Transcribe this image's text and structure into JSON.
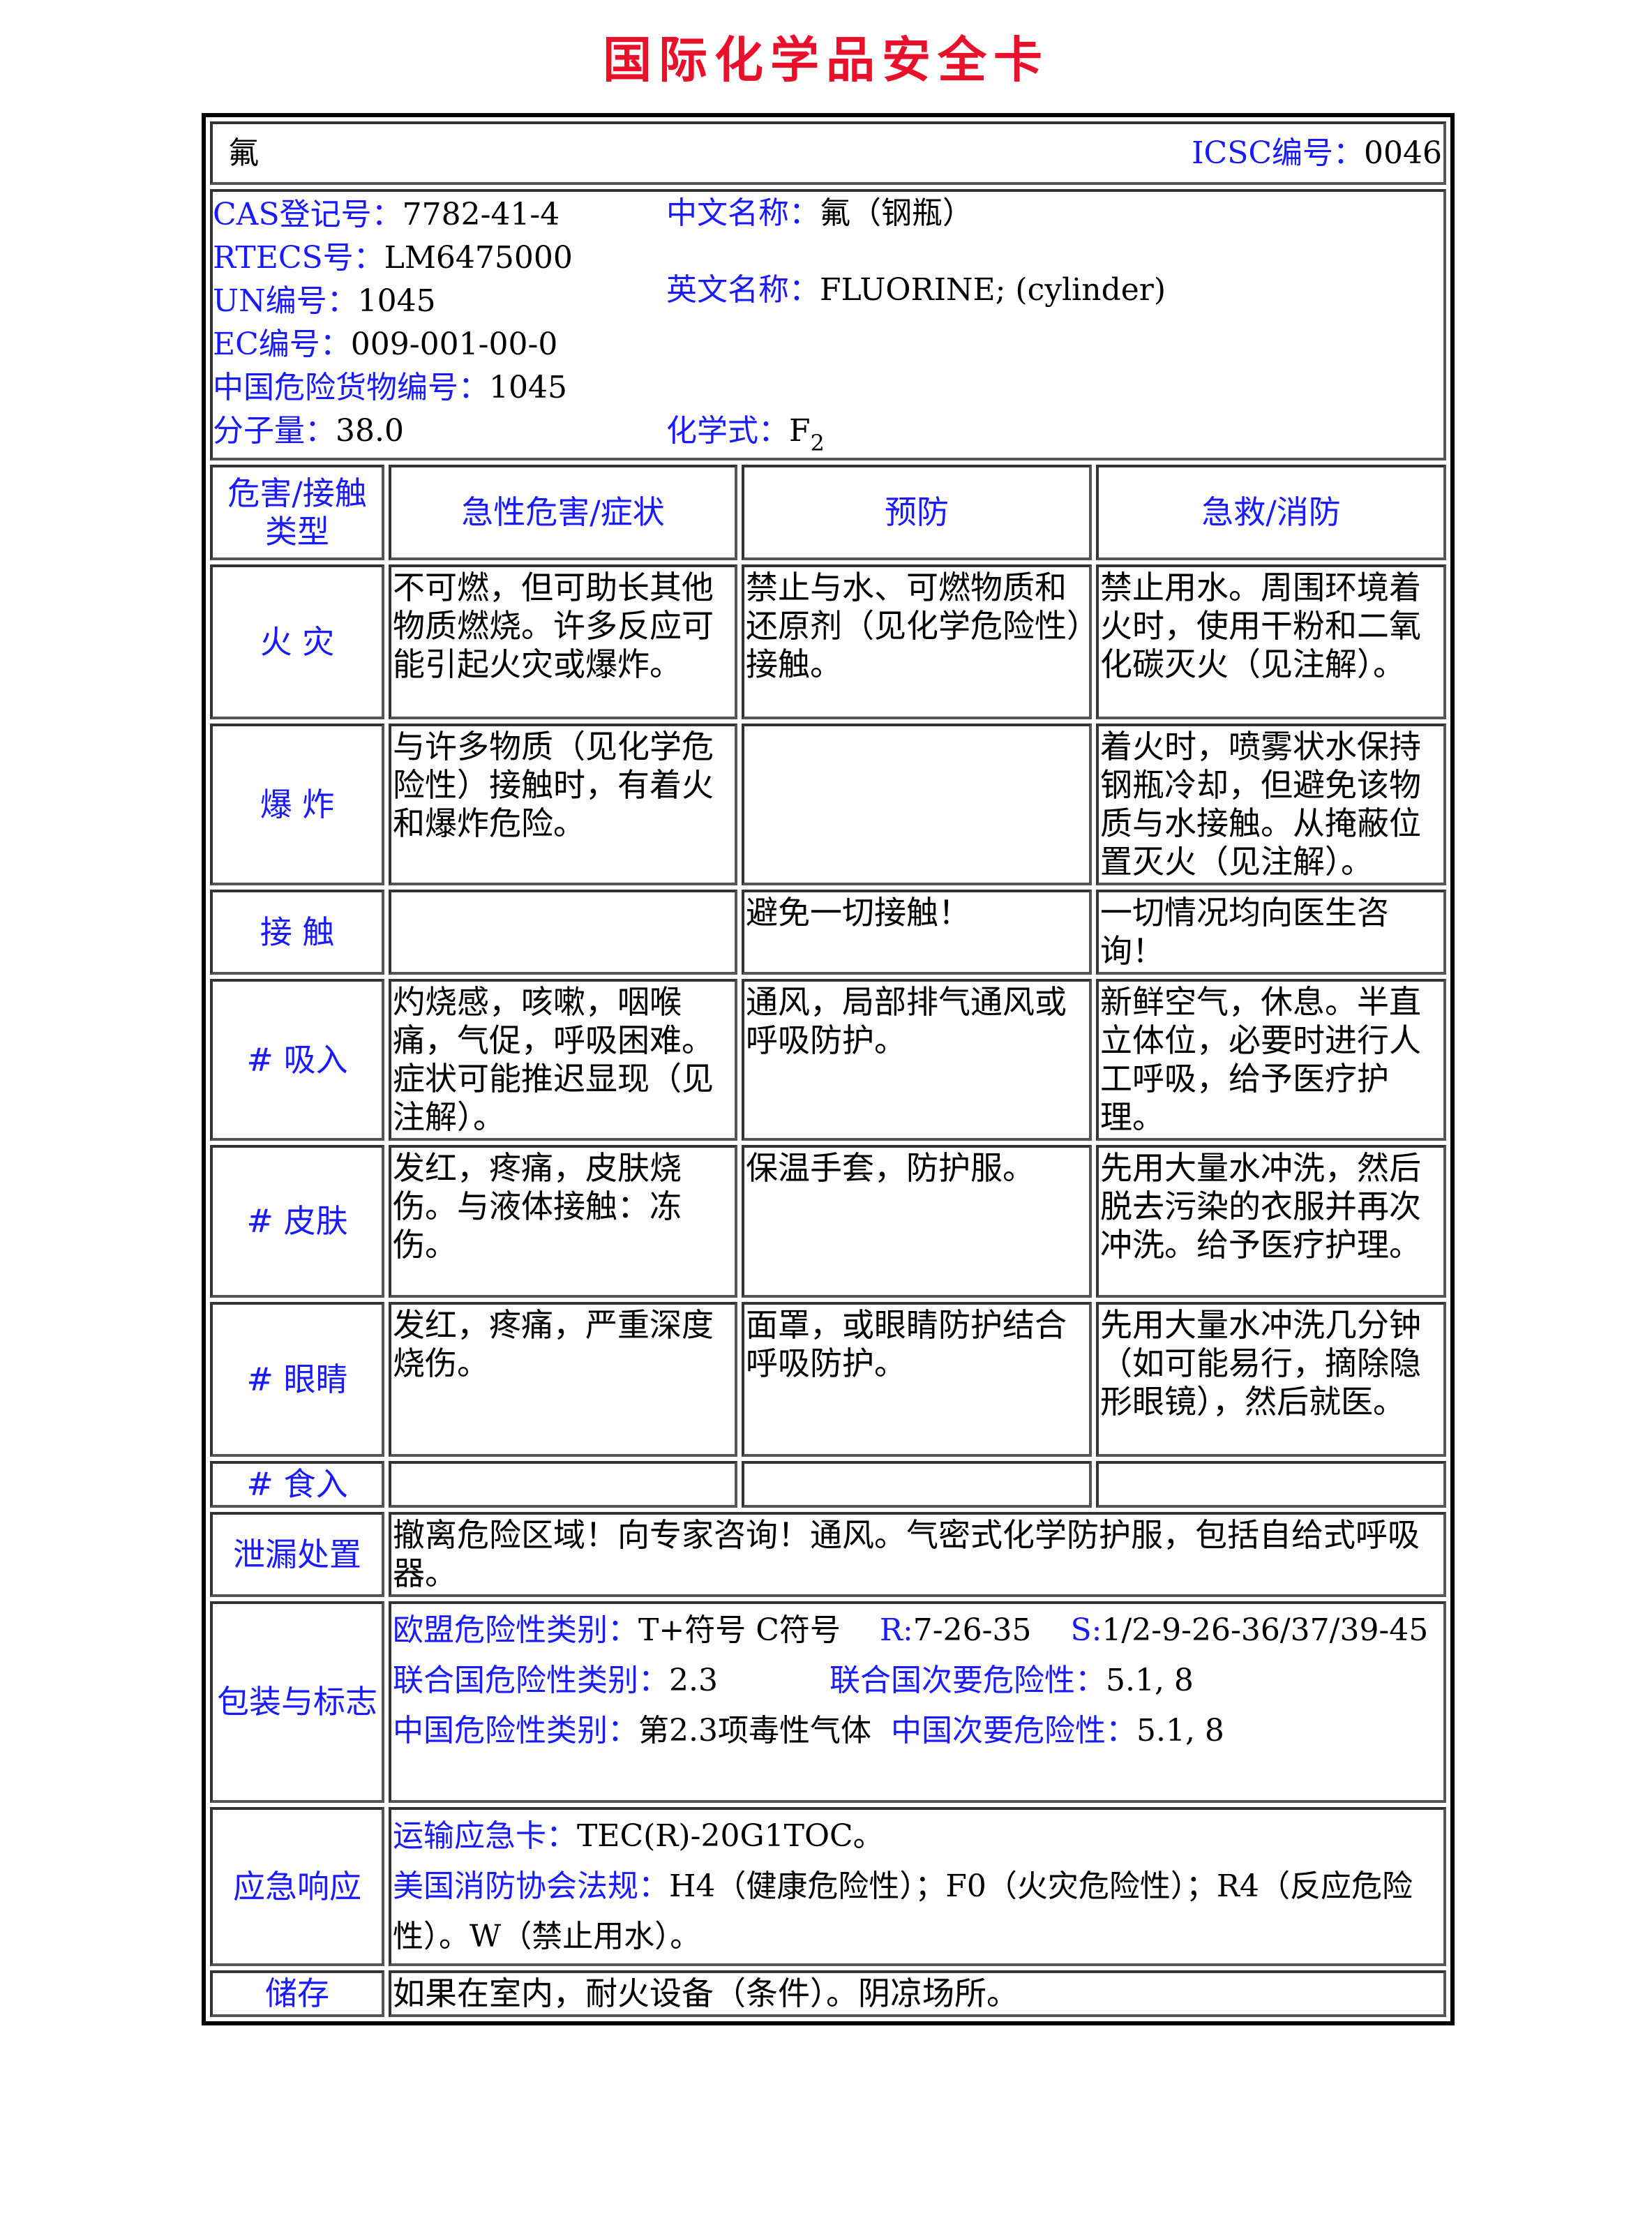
{
  "title": "国际化学品安全卡",
  "header": {
    "name": "氟",
    "icsc_label": "ICSC编号：",
    "icsc_value": "0046"
  },
  "info": {
    "cas_label": "CAS登记号：",
    "cas": "7782-41-4",
    "rtecs_label": "RTECS号：",
    "rtecs": "LM6475000",
    "un_label": "UN编号：",
    "un": "1045",
    "ec_label": "EC编号：",
    "ec": "009-001-00-0",
    "cn_dg_label": "中国危险货物编号：",
    "cn_dg": "1045",
    "mw_label": "分子量：",
    "mw": "38.0",
    "cn_name_label": "中文名称：",
    "cn_name": "氟（钢瓶）",
    "en_name_label": "英文名称：",
    "en_name": "FLUORINE; (cylinder)",
    "formula_label": "化学式：",
    "formula": "F",
    "formula_sub": "2"
  },
  "columns": [
    "危害/接触类型",
    "急性危害/症状",
    "预防",
    "急救/消防"
  ],
  "rows": [
    {
      "type": "火 灾",
      "hazard": "不可燃，但可助长其他物质燃烧。许多反应可能引起火灾或爆炸。",
      "prevention": "禁止与水、可燃物质和还原剂（见化学危险性）接触。",
      "aid": "禁止用水。周围环境着火时，使用干粉和二氧化碳灭火（见注解）。"
    },
    {
      "type": "爆 炸",
      "hazard": "与许多物质（见化学危险性）接触时，有着火和爆炸危险。",
      "prevention": "",
      "aid": "着火时，喷雾状水保持钢瓶冷却，但避免该物质与水接触。从掩蔽位置灭火（见注解）。"
    },
    {
      "type": "接 触",
      "hazard": "",
      "prevention": "避免一切接触！",
      "aid": "一切情况均向医生咨询！"
    },
    {
      "type": "# 吸入",
      "hazard": "灼烧感，咳嗽，咽喉痛，气促，呼吸困难。症状可能推迟显现（见注解）。",
      "prevention": "通风，局部排气通风或呼吸防护。",
      "aid": "新鲜空气，休息。半直立体位，必要时进行人工呼吸，给予医疗护理。"
    },
    {
      "type": "# 皮肤",
      "hazard": "发红，疼痛，皮肤烧伤。与液体接触：冻伤。",
      "prevention": "保温手套，防护服。",
      "aid": "先用大量水冲洗，然后脱去污染的衣服并再次冲洗。给予医疗护理。"
    },
    {
      "type": "# 眼睛",
      "hazard": "发红，疼痛，严重深度烧伤。",
      "prevention": "面罩，或眼睛防护结合呼吸防护。",
      "aid": "先用大量水冲洗几分钟（如可能易行，摘除隐形眼镜），然后就医。"
    },
    {
      "type": "# 食入",
      "hazard": "",
      "prevention": "",
      "aid": ""
    }
  ],
  "spill": {
    "label": "泄漏处置",
    "text": "撤离危险区域！向专家咨询！通风。气密式化学防护服，包括自给式呼吸器。"
  },
  "packaging": {
    "label": "包装与标志",
    "eu_label": "欧盟危险性类别：",
    "eu": "T+符号 C符号",
    "r_label": "R:",
    "r": "7-26-35",
    "s_label": "S:",
    "s": "1/2-9-26-36/37/39-45",
    "un_label": "联合国危险性类别：",
    "un": "2.3",
    "un_sub_label": "联合国次要危险性：",
    "un_sub": "5.1, 8",
    "cn_label": "中国危险性类别：",
    "cn": "第2.3项毒性气体",
    "cn_sub_label": "中国次要危险性：",
    "cn_sub": "5.1, 8"
  },
  "emergency": {
    "label": "应急响应",
    "tec_label": "运输应急卡：",
    "tec": "TEC(R)-20G1TOC。",
    "nfpa_label": "美国消防协会法规：",
    "nfpa": "H4（健康危险性）；F0（火灾危险性）；R4（反应危险性）。W（禁止用水）。"
  },
  "storage": {
    "label": "储存",
    "text": "如果在室内，耐火设备（条件）。阴凉场所。"
  }
}
